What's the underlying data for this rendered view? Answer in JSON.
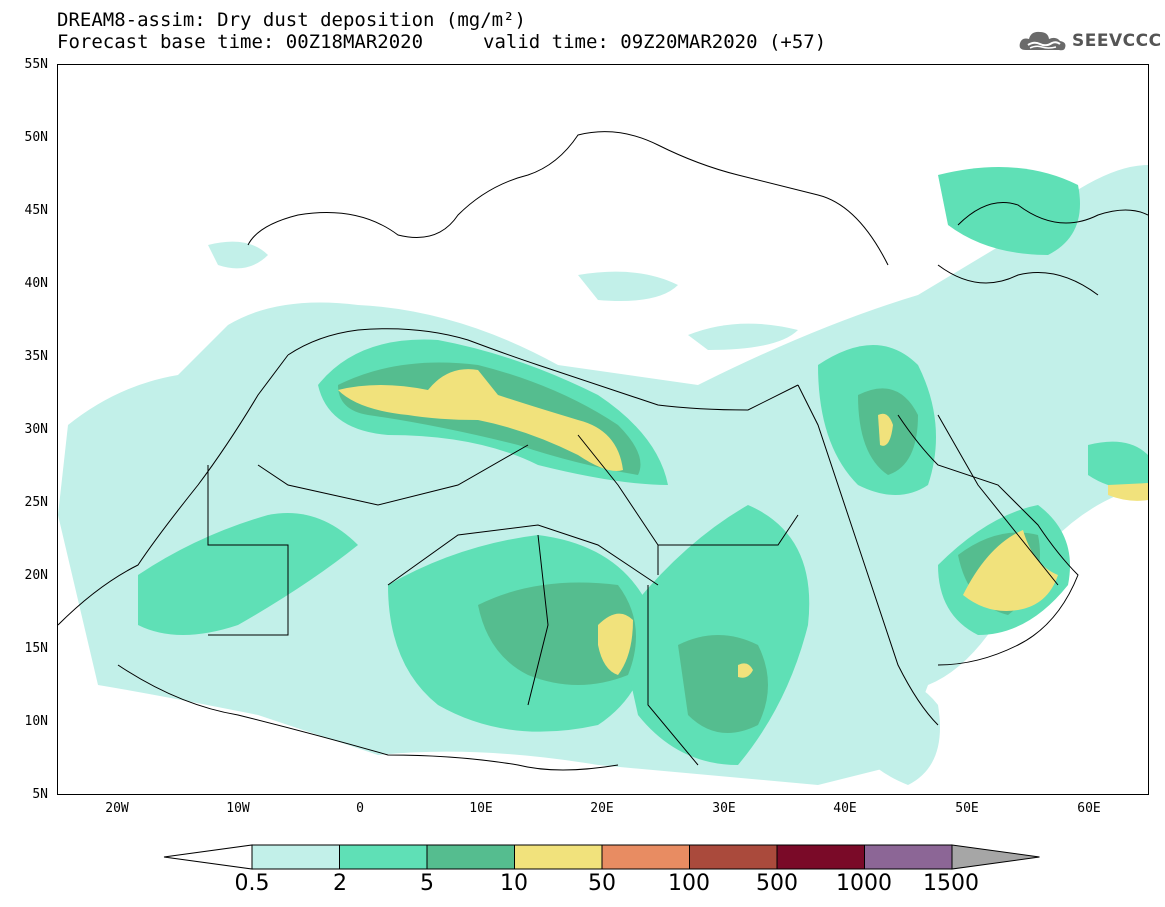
{
  "header": {
    "title_line1": "DREAM8-assim: Dry dust deposition (mg/m²)",
    "title_line2": "Forecast base time: 00Z18MAR2020",
    "valid_time": "valid time: 09Z20MAR2020 (+57)",
    "logo_text": "SEEVCCC",
    "logo_icon": "cloud-icon"
  },
  "map": {
    "lat_labels": [
      "55N",
      "50N",
      "45N",
      "40N",
      "35N",
      "30N",
      "25N",
      "20N",
      "15N",
      "10N",
      "5N"
    ],
    "lon_labels": [
      "20W",
      "10W",
      "0",
      "10E",
      "20E",
      "30E",
      "40E",
      "50E",
      "60E"
    ],
    "lat_range": [
      5,
      55
    ],
    "lon_range": [
      -25,
      65
    ]
  },
  "legend": {
    "labels": [
      "0.5",
      "2",
      "5",
      "10",
      "50",
      "100",
      "500",
      "1000",
      "1500"
    ],
    "colors": [
      "#c2f0e9",
      "#5fe0b6",
      "#55bd8f",
      "#f1e27c",
      "#e88c62",
      "#aa4a3c",
      "#7a0a28",
      "#8c6696",
      "#a6a6a6"
    ],
    "low_color": "#ffffff"
  }
}
